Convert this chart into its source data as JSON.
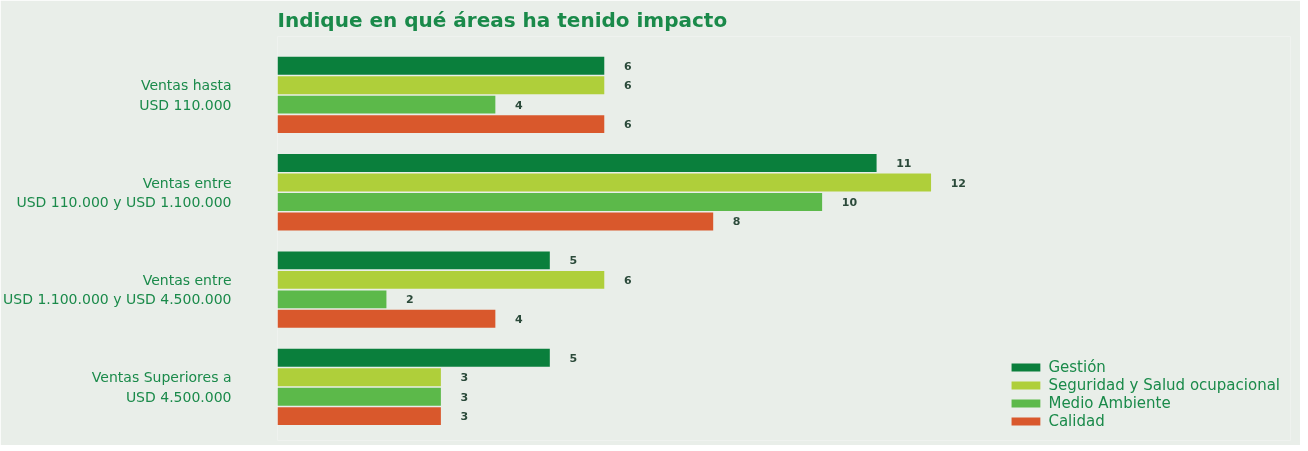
{
  "chart_data": {
    "type": "bar",
    "orientation": "horizontal",
    "title": "Indique en qué áreas ha tenido impacto",
    "categories": [
      "Ventas hasta\nUSD 110.000",
      "Ventas entre\nUSD 110.000 y USD 1.100.000",
      "Ventas entre\nUSD 1.100.000 y USD 4.500.000",
      "Ventas Superiores a\nUSD 4.500.000"
    ],
    "series": [
      {
        "name": "Gestión",
        "color": "#0a7f3c",
        "values": [
          6,
          11,
          5,
          5
        ]
      },
      {
        "name": "Seguridad y Salud ocupacional",
        "color": "#afcf3a",
        "values": [
          6,
          12,
          6,
          3
        ]
      },
      {
        "name": "Medio Ambiente",
        "color": "#5cb94a",
        "values": [
          4,
          10,
          2,
          3
        ]
      },
      {
        "name": "Calidad",
        "color": "#d9582c",
        "values": [
          6,
          8,
          4,
          3
        ]
      }
    ],
    "data_labels": true,
    "legend": "bottom right",
    "grid": false
  }
}
